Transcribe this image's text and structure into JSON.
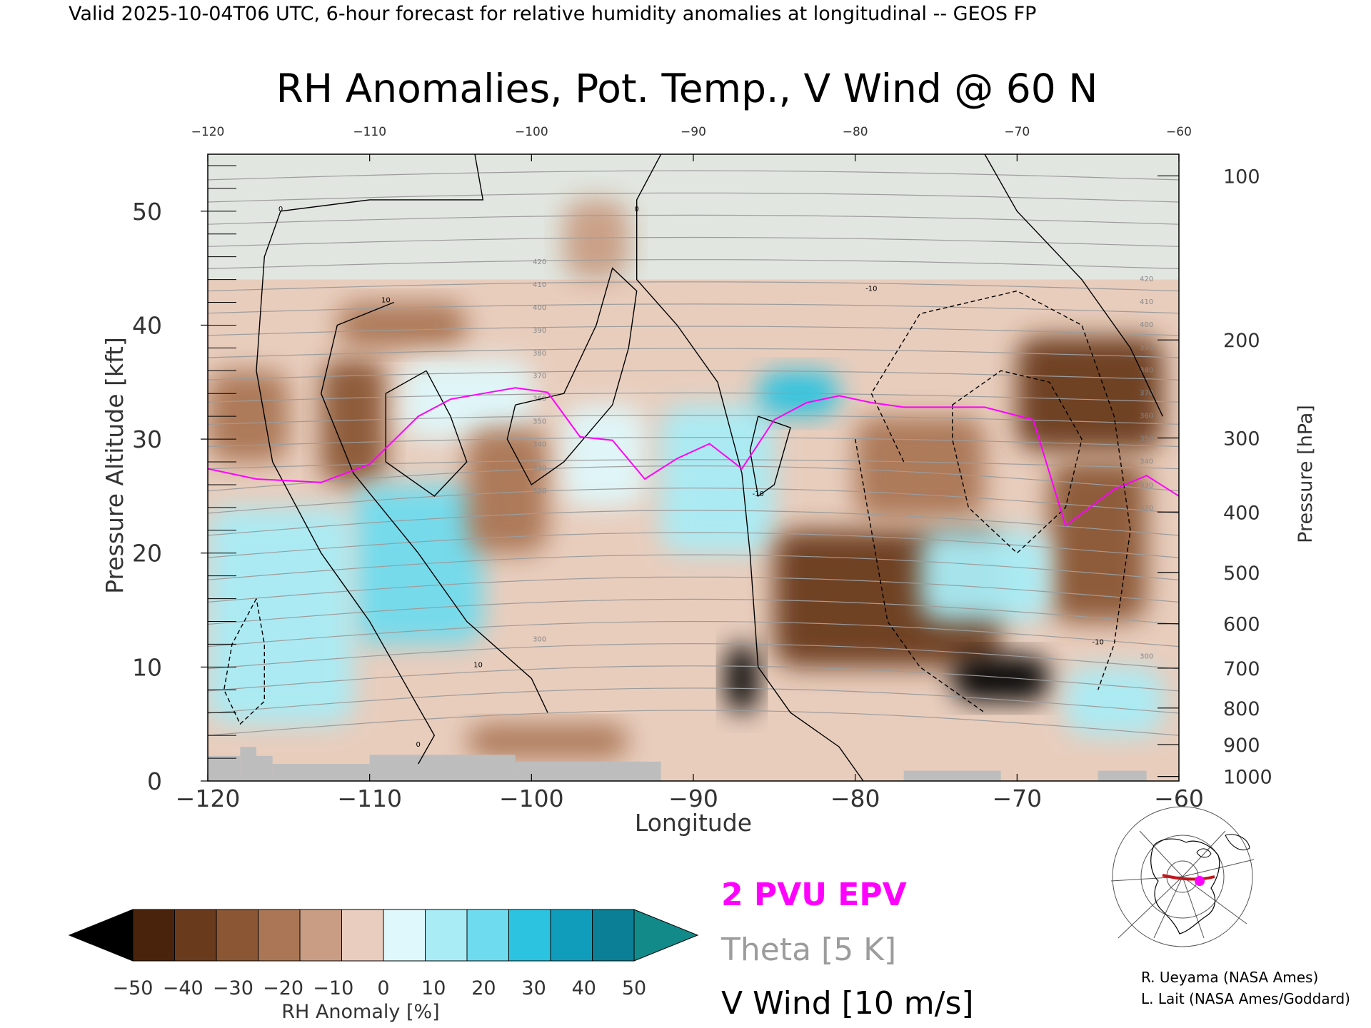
{
  "header": "Valid 2025-10-04T06 UTC, 6-hour forecast for relative humidity anomalies at longitudinal -- GEOS FP",
  "chart_data": {
    "type": "heatmap",
    "title": "RH Anomalies, Pot. Temp., V Wind @ 60 N",
    "xlabel": "Longitude",
    "ylabel": "Pressure Altitude [kft]",
    "y2label": "Pressure [hPa]",
    "xlim": [
      -120,
      -60
    ],
    "ylim": [
      0,
      55
    ],
    "x_ticks": [
      -120,
      -110,
      -100,
      -90,
      -80,
      -70,
      -60
    ],
    "top_ticks": [
      -120,
      -110,
      -100,
      -90,
      -80,
      -70,
      -60
    ],
    "y_ticks": [
      0,
      10,
      20,
      30,
      40,
      50
    ],
    "pressure_ticks": [
      {
        "label": "100",
        "kft": 53.1
      },
      {
        "label": "200",
        "kft": 38.7
      },
      {
        "label": "300",
        "kft": 30.1
      },
      {
        "label": "400",
        "kft": 23.6
      },
      {
        "label": "500",
        "kft": 18.3
      },
      {
        "label": "600",
        "kft": 13.8
      },
      {
        "label": "700",
        "kft": 9.9
      },
      {
        "label": "800",
        "kft": 6.4
      },
      {
        "label": "900",
        "kft": 3.2
      },
      {
        "label": "1000",
        "kft": 0.4
      }
    ],
    "colorbar": {
      "label": "RH Anomaly [%]",
      "ticks": [
        -50,
        -40,
        -30,
        -20,
        -10,
        0,
        10,
        20,
        30,
        40,
        50
      ],
      "colors": [
        "#4a230c",
        "#6a3a1c",
        "#8a5634",
        "#aa7655",
        "#c99d83",
        "#e9cdbf",
        "#dff8fb",
        "#a9ecf6",
        "#6fdbee",
        "#2bc3e0",
        "#0f9dbb",
        "#0a7f96"
      ],
      "under_color": "#000000",
      "over_color": "#138a8a"
    },
    "anomaly_regions": [
      {
        "x": [
          -120,
          -115
        ],
        "y": [
          28,
          36
        ],
        "value": -20
      },
      {
        "x": [
          -113,
          -109
        ],
        "y": [
          26,
          37
        ],
        "value": -30
      },
      {
        "x": [
          -112,
          -104
        ],
        "y": [
          38,
          42
        ],
        "value": -15
      },
      {
        "x": [
          -108,
          -100
        ],
        "y": [
          30,
          37
        ],
        "value": 12
      },
      {
        "x": [
          -111,
          -103
        ],
        "y": [
          12,
          26
        ],
        "value": 35
      },
      {
        "x": [
          -120,
          -111
        ],
        "y": [
          5,
          24
        ],
        "value": 25
      },
      {
        "x": [
          -104,
          -99
        ],
        "y": [
          20,
          31
        ],
        "value": -20
      },
      {
        "x": [
          -98,
          -93
        ],
        "y": [
          24,
          33
        ],
        "value": 10
      },
      {
        "x": [
          -92,
          -85
        ],
        "y": [
          20,
          33
        ],
        "value": 20
      },
      {
        "x": [
          -86,
          -81
        ],
        "y": [
          32,
          36
        ],
        "value": 40
      },
      {
        "x": [
          -98,
          -94
        ],
        "y": [
          44,
          51
        ],
        "value": -5
      },
      {
        "x": [
          -85,
          -71
        ],
        "y": [
          10,
          22
        ],
        "value": -35
      },
      {
        "x": [
          -80,
          -72
        ],
        "y": [
          23,
          32
        ],
        "value": -15
      },
      {
        "x": [
          -70,
          -61
        ],
        "y": [
          29,
          39
        ],
        "value": -35
      },
      {
        "x": [
          -68,
          -62
        ],
        "y": [
          14,
          28
        ],
        "value": -25
      },
      {
        "x": [
          -76,
          -68
        ],
        "y": [
          14,
          22
        ],
        "value": 20
      },
      {
        "x": [
          -88,
          -86
        ],
        "y": [
          6,
          12
        ],
        "value": -55
      },
      {
        "x": [
          -74,
          -68
        ],
        "y": [
          7,
          11
        ],
        "value": -55
      },
      {
        "x": [
          -104,
          -94
        ],
        "y": [
          2,
          5
        ],
        "value": -15
      },
      {
        "x": [
          -67,
          -61
        ],
        "y": [
          4,
          10
        ],
        "value": 25
      }
    ],
    "terrain": [
      {
        "x": [
          -120,
          -118
        ],
        "height_kft": 2.2
      },
      {
        "x": [
          -118,
          -117
        ],
        "height_kft": 3.0
      },
      {
        "x": [
          -117,
          -116
        ],
        "height_kft": 2.2
      },
      {
        "x": [
          -116,
          -110
        ],
        "height_kft": 1.5
      },
      {
        "x": [
          -110,
          -101
        ],
        "height_kft": 2.3
      },
      {
        "x": [
          -101,
          -92
        ],
        "height_kft": 1.7
      },
      {
        "x": [
          -77,
          -71
        ],
        "height_kft": 0.9
      },
      {
        "x": [
          -65,
          -62
        ],
        "height_kft": 0.9
      }
    ],
    "theta_levels": [
      300,
      320,
      330,
      340,
      350,
      360,
      370,
      380,
      390,
      400,
      410,
      420
    ],
    "theta_label_text": [
      "300",
      "320",
      "330",
      "340",
      "350",
      "360",
      "370",
      "380",
      "390",
      "400",
      "410",
      "420"
    ],
    "epv_2pvu": {
      "lon": [
        -120,
        -117,
        -113,
        -110,
        -107,
        -105,
        -103,
        -101,
        -99,
        -97,
        -95,
        -93,
        -91,
        -89,
        -87,
        -85,
        -83,
        -81,
        -79,
        -77,
        -75,
        -72,
        -69,
        -67,
        -64,
        -62,
        -60
      ],
      "kft": [
        27.4,
        26.5,
        26.2,
        27.8,
        32.0,
        33.5,
        34.0,
        34.5,
        34.1,
        30.2,
        29.9,
        26.5,
        28.3,
        29.6,
        27.4,
        31.7,
        33.2,
        33.8,
        33.2,
        32.8,
        32.8,
        32.8,
        31.7,
        22.4,
        25.6,
        26.8,
        25.0
      ]
    },
    "vwind_contour_labels": [
      "0",
      "10",
      "-10"
    ],
    "legend": [
      {
        "label": "2 PVU EPV",
        "color": "#ff00ff"
      },
      {
        "label": "Theta [5 K]",
        "color": "#9c9c9c"
      },
      {
        "label": "V Wind [10 m/s]",
        "color": "#000000"
      }
    ]
  },
  "credits": [
    "R. Ueyama (NASA Ames)",
    "L. Lait (NASA Ames/Goddard)"
  ]
}
